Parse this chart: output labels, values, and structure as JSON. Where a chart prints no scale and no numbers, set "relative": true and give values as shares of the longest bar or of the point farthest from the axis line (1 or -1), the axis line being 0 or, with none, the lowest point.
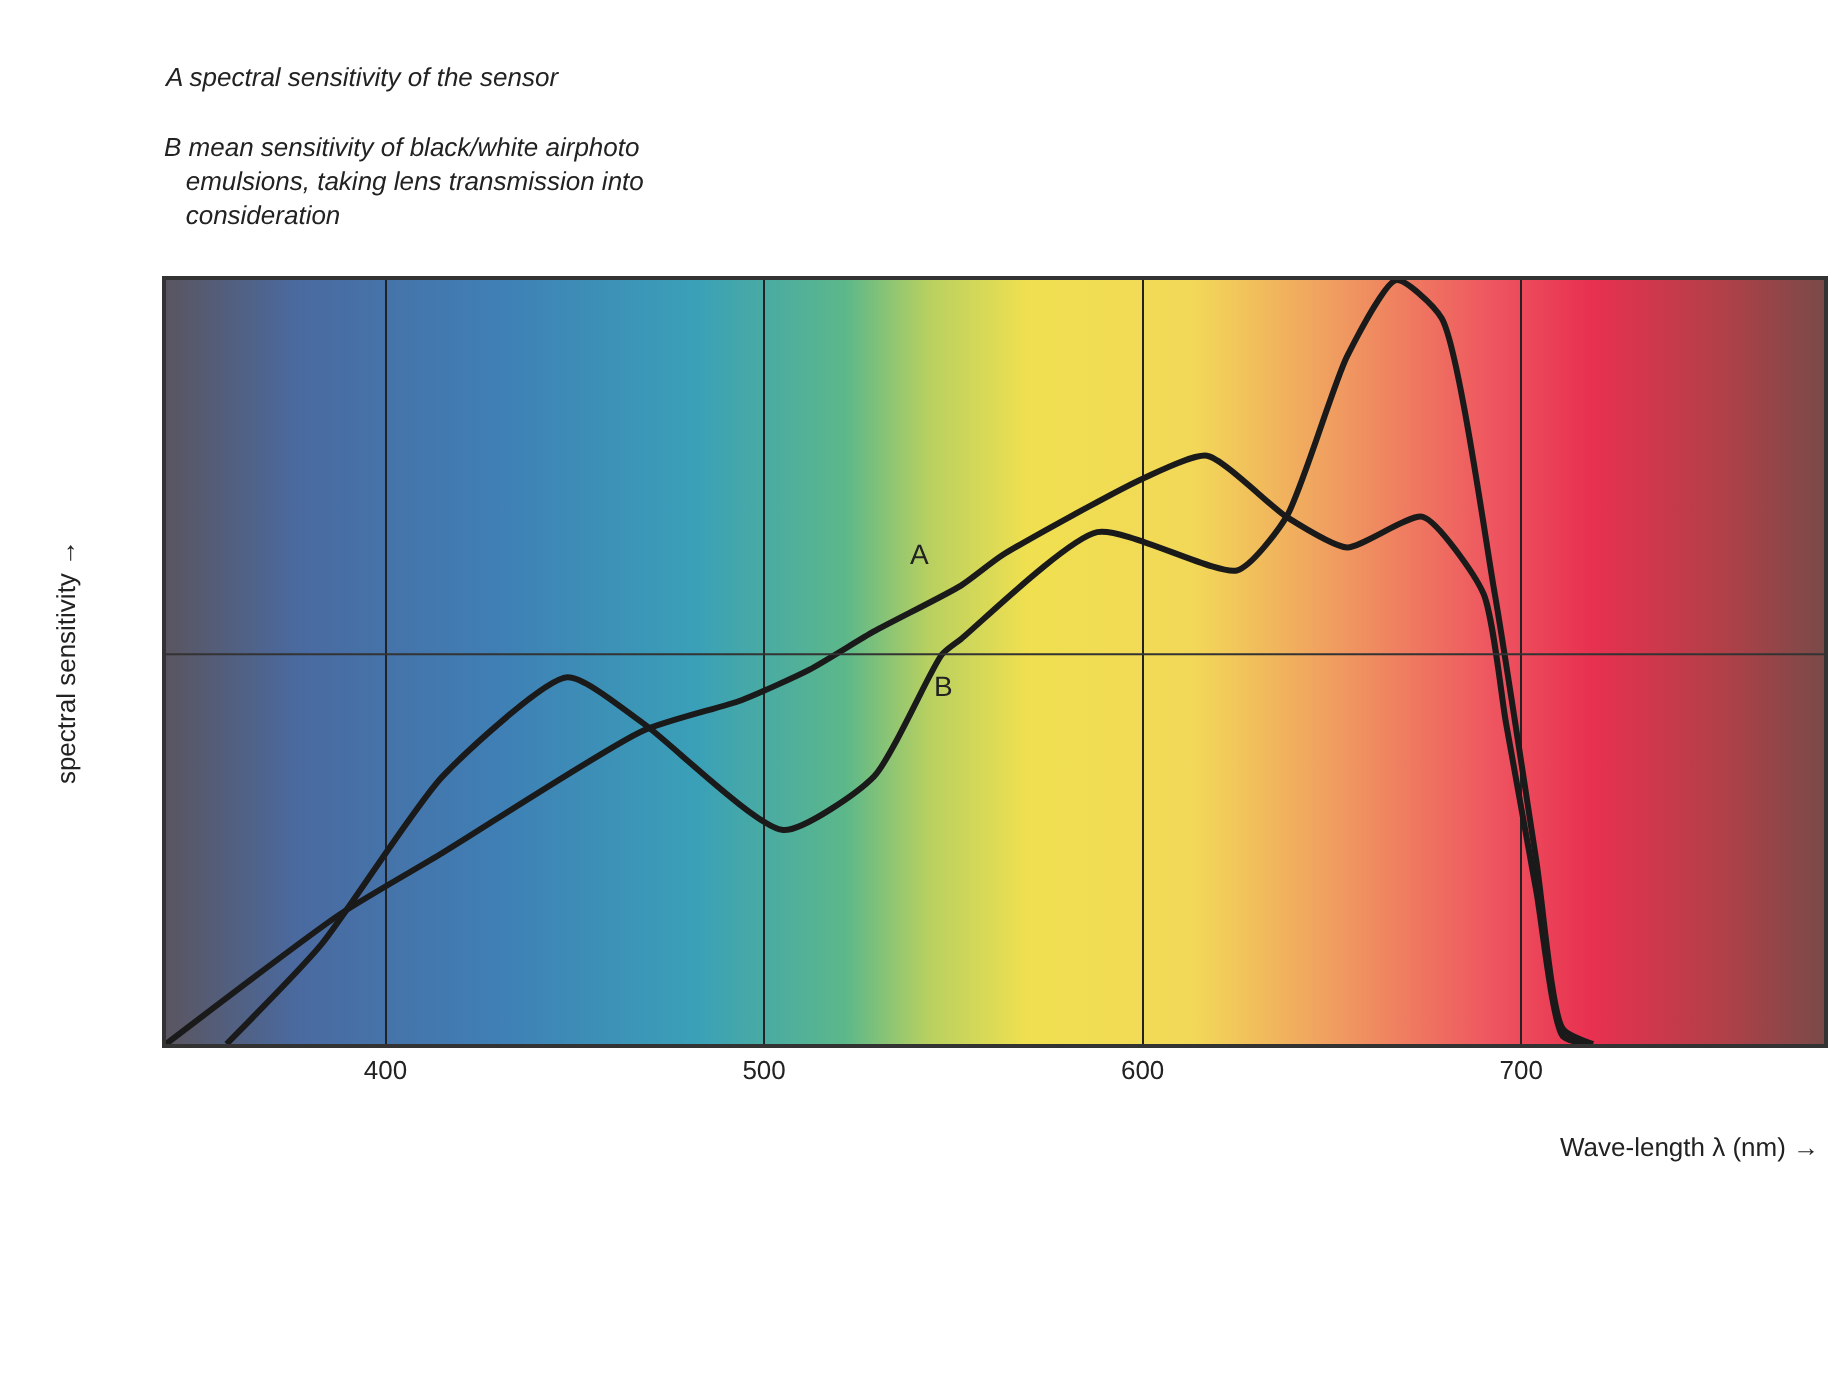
{
  "chart_data": {
    "type": "line",
    "relative": true,
    "annotations": [
      "A spectral sensitivity of the sensor",
      "B mean sensitivity of black/white airphoto emulsions, taking lens transmission into consideration"
    ],
    "xlabel": "Wave-length λ (nm) →",
    "ylabel": "spectral sensitivity →",
    "xlim": [
      342,
      780
    ],
    "xticks": [
      400,
      500,
      600,
      700
    ],
    "grid": "x",
    "legend": false,
    "marker": "none",
    "line_style": "solid",
    "ref_lines": [
      {
        "axis": "y",
        "value": 0.51,
        "color": "#333333"
      }
    ],
    "series": [
      {
        "name": "A",
        "color": "#1a1a1a",
        "x": [
          342,
          388,
          415,
          468,
          494,
          512,
          529,
          552,
          563,
          600,
          617,
          638,
          654,
          674,
          690,
          696,
          704,
          711,
          718
        ],
        "values": [
          0,
          0.17,
          0.25,
          0.41,
          0.45,
          0.49,
          0.54,
          0.6,
          0.64,
          0.74,
          0.77,
          0.69,
          0.65,
          0.69,
          0.59,
          0.42,
          0.2,
          0.01,
          0
        ]
      },
      {
        "name": "B",
        "color": "#1a1a1a",
        "x": [
          358,
          383,
          415,
          448,
          468,
          505,
          529,
          547,
          552,
          588,
          625,
          638,
          654,
          667,
          679,
          693,
          704,
          711,
          719
        ],
        "values": [
          0,
          0.13,
          0.35,
          0.48,
          0.42,
          0.28,
          0.35,
          0.51,
          0.53,
          0.67,
          0.62,
          0.69,
          0.9,
          1,
          0.95,
          0.59,
          0.24,
          0.02,
          0
        ]
      }
    ]
  }
}
